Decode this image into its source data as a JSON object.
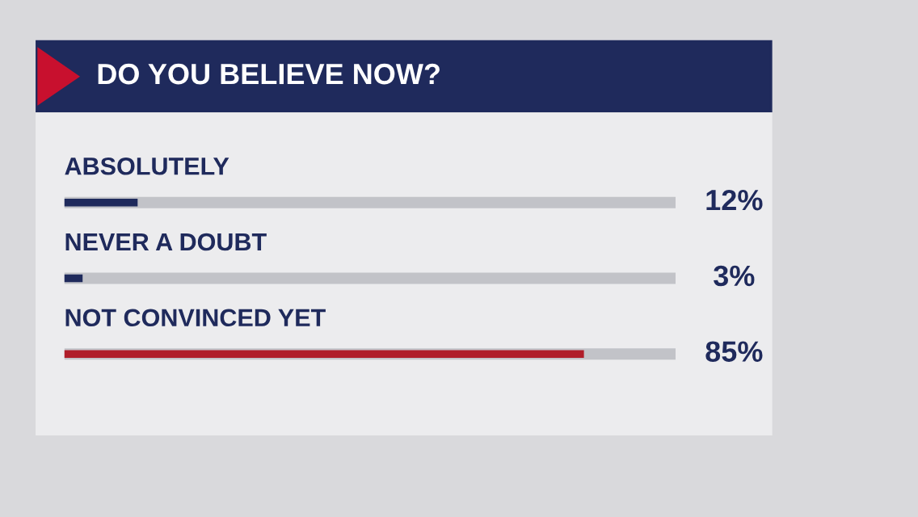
{
  "chart_data": {
    "type": "bar",
    "orientation": "horizontal",
    "title": "DO YOU BELIEVE NOW?",
    "categories": [
      "ABSOLUTELY",
      "NEVER A DOUBT",
      "NOT CONVINCED YET"
    ],
    "values": [
      12,
      3,
      85
    ],
    "colors": [
      "#1f2a5c",
      "#1f2a5c",
      "#b01e2a"
    ],
    "value_labels": [
      "12%",
      "3%",
      "85%"
    ],
    "xlim": [
      0,
      100
    ]
  }
}
